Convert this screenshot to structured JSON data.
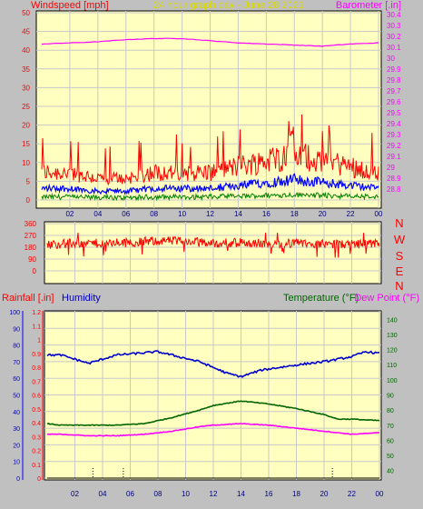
{
  "header": {
    "left_label": "Windspeed [mph]",
    "center_label": "24 hour graph day - June 28 2021",
    "right_label": "Barometer [.in]"
  },
  "compass_letters": [
    "N",
    "W",
    "S",
    "E",
    "N"
  ],
  "lower_labels": {
    "rainfall": "Rainfall [.in]",
    "humidity": "Humidity",
    "temperature": "Temperature (°F)",
    "dew_point": "Dew Point (°F)"
  },
  "colors": {
    "background": "#c0c0c0",
    "plot_bg": "#ffffc0",
    "wind_gust": "#ff0000",
    "wind_avg": "#0000ff",
    "wind_low": "#008000",
    "barometer": "#ff00ff",
    "direction": "#ff0000",
    "humidity": "#0000cc",
    "temperature": "#006400",
    "dew_point": "#ff00ff",
    "rain": "#000000"
  },
  "chart_data": [
    {
      "type": "line",
      "x_ticks": [
        "02",
        "04",
        "06",
        "08",
        "10",
        "12",
        "14",
        "16",
        "18",
        "20",
        "22",
        "00"
      ],
      "left_axis": {
        "ticks": [
          0,
          5,
          10,
          15,
          20,
          25,
          30,
          35,
          40,
          45,
          50
        ],
        "ylim": [
          0,
          50
        ]
      },
      "right_axis": {
        "ticks": [
          "28.8",
          "28.9",
          "29",
          "29.1",
          "29.2",
          "29.3",
          "29.4",
          "29.5",
          "29.6",
          "29.7",
          "29.8",
          "29.9",
          "30",
          "30.1",
          "30.2",
          "30.3",
          "30.4"
        ],
        "ylim": [
          28.7,
          30.4
        ]
      },
      "series": [
        {
          "name": "Windspeed",
          "axis": "left",
          "x": [
            0,
            2,
            4,
            6,
            8,
            10,
            12,
            14,
            16,
            18,
            20,
            22,
            24
          ],
          "y": [
            4,
            4,
            3,
            3,
            4,
            4,
            4,
            5,
            6,
            7,
            6,
            5,
            4
          ]
        },
        {
          "name": "Barometer",
          "axis": "right",
          "x": [
            0,
            2,
            4,
            6,
            8,
            10,
            12,
            14,
            16,
            18,
            20,
            22,
            24
          ],
          "y": [
            30.13,
            30.14,
            30.15,
            30.17,
            30.18,
            30.18,
            30.16,
            30.14,
            30.13,
            30.12,
            30.11,
            30.13,
            30.14
          ]
        }
      ]
    },
    {
      "type": "line",
      "y_ticks": [
        0,
        90,
        180,
        270,
        360
      ],
      "ylim": [
        0,
        360
      ],
      "series": [
        {
          "name": "Wind Direction",
          "x": [
            0,
            2,
            4,
            6,
            8,
            10,
            12,
            14,
            16,
            18,
            20,
            22,
            24
          ],
          "y": [
            200,
            210,
            210,
            215,
            230,
            225,
            210,
            215,
            205,
            210,
            205,
            200,
            205
          ]
        }
      ]
    },
    {
      "type": "line",
      "x_ticks": [
        "02",
        "04",
        "06",
        "08",
        "10",
        "12",
        "14",
        "16",
        "18",
        "20",
        "22",
        "00"
      ],
      "humidity_axis": {
        "ticks": [
          0,
          10,
          20,
          30,
          40,
          50,
          60,
          70,
          80,
          90,
          100
        ],
        "ylim": [
          0,
          100
        ]
      },
      "rain_axis": {
        "ticks": [
          "0",
          "0.1",
          "0.2",
          "0.3",
          "0.4",
          "0.5",
          "0.6",
          "0.7",
          "0.8",
          "0.9",
          "1",
          "1.1",
          "1.2"
        ],
        "ylim": [
          0,
          1.2
        ]
      },
      "temp_axis": {
        "ticks": [
          40,
          50,
          60,
          70,
          80,
          90,
          100,
          110,
          120,
          130,
          140
        ],
        "ylim": [
          35,
          145
        ]
      },
      "series": [
        {
          "name": "Humidity",
          "axis": "humidity",
          "x": [
            0,
            1,
            3,
            5,
            8,
            11,
            13,
            14,
            15.5,
            18,
            20,
            22,
            23,
            24
          ],
          "y": [
            74,
            74,
            69,
            74,
            76,
            70,
            63,
            61,
            65,
            68,
            70,
            73,
            76,
            75
          ]
        },
        {
          "name": "Temperature",
          "axis": "temp",
          "x": [
            0,
            1,
            3,
            5,
            7,
            9,
            11,
            12,
            14,
            16,
            18,
            20,
            21,
            22,
            24
          ],
          "y": [
            71,
            70,
            70,
            70,
            71,
            75,
            80,
            83,
            86,
            84,
            81,
            77,
            74,
            74,
            73
          ]
        },
        {
          "name": "Dew Point",
          "axis": "temp",
          "x": [
            0,
            1,
            3,
            5,
            7,
            9,
            11,
            12,
            14,
            16,
            18,
            20,
            21,
            22,
            24
          ],
          "y": [
            64,
            64,
            63,
            63,
            64,
            66,
            69,
            70,
            71,
            70,
            68,
            66,
            65,
            64,
            65
          ]
        },
        {
          "name": "Rainfall",
          "axis": "rain",
          "x": [
            0,
            24
          ],
          "y": [
            0,
            0
          ]
        }
      ]
    }
  ]
}
